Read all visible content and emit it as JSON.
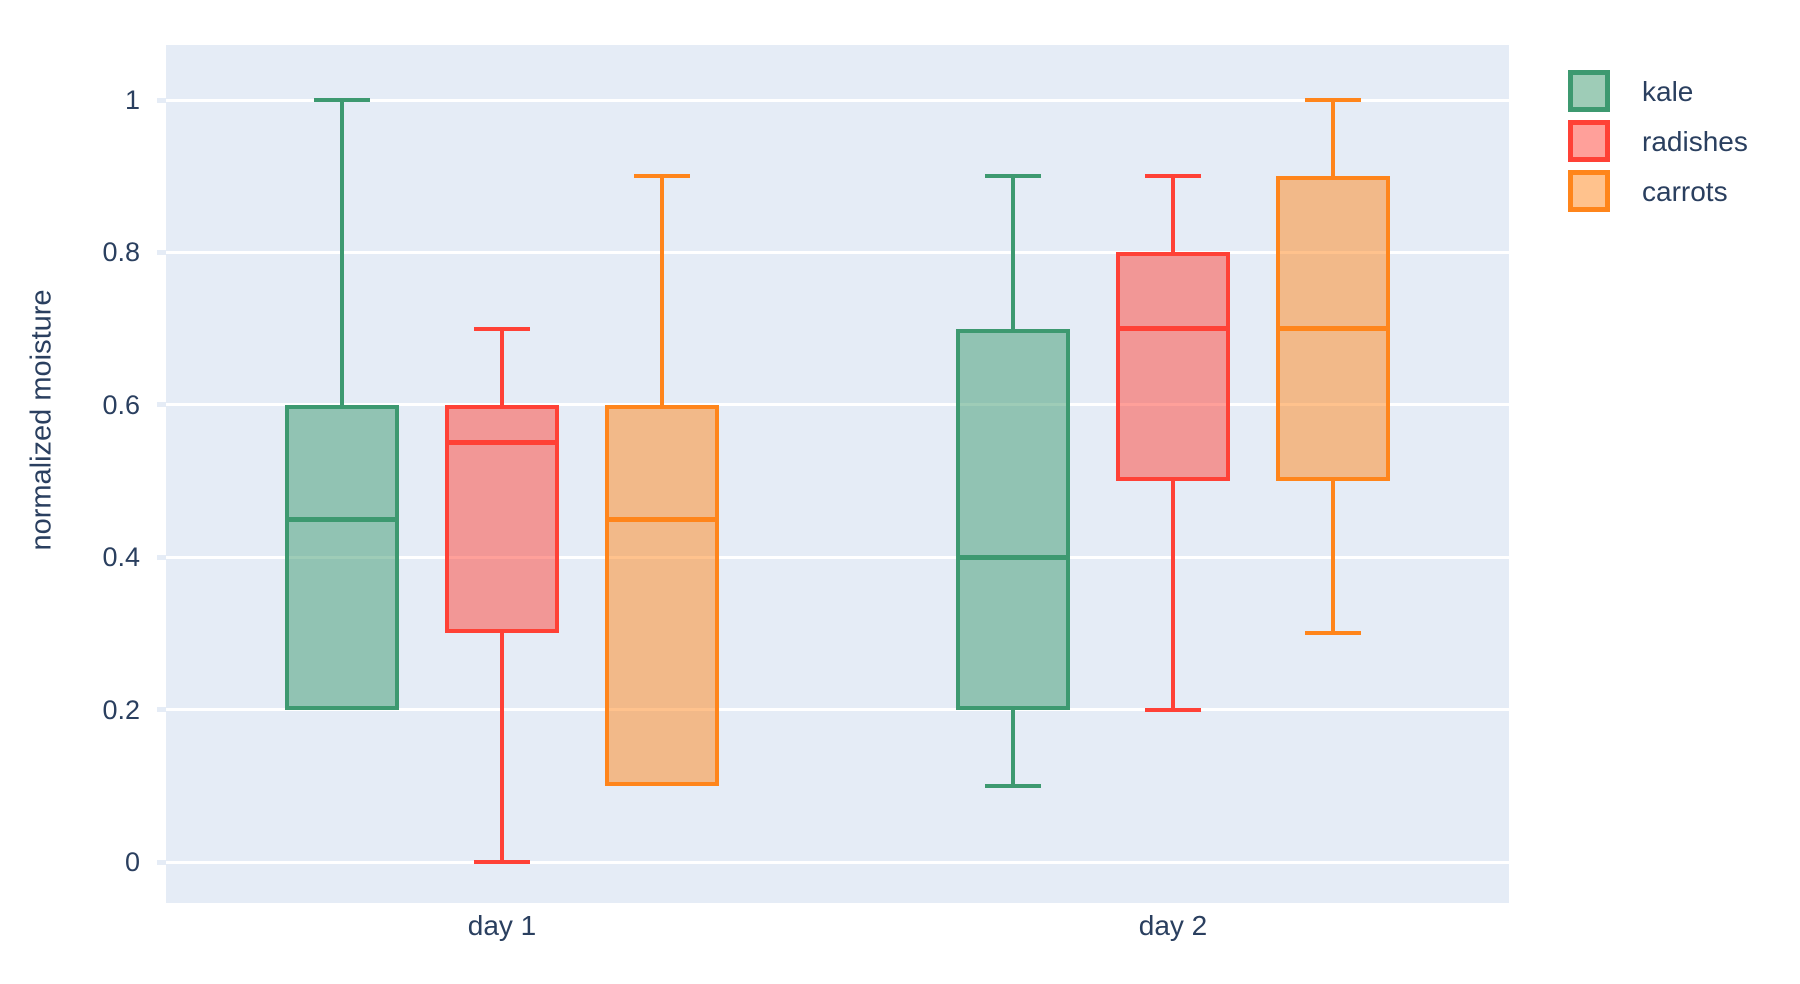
{
  "colors": {
    "plot_background": "#e5ecf6",
    "gridline": "#ffffff",
    "text": "#2a3f5f",
    "kale": "#3d9970",
    "radishes": "#ff4136",
    "carrots": "#ff851b"
  },
  "chart_data": {
    "type": "box",
    "title": "",
    "xlabel": "",
    "ylabel": "normalized moisture",
    "categories": [
      "day 1",
      "day 2"
    ],
    "yticks": [
      0,
      0.2,
      0.4,
      0.6,
      0.8,
      1
    ],
    "ylim": [
      -0.06,
      1.07
    ],
    "grid": true,
    "legend_position": "top-right-outside",
    "legend": [
      "kale",
      "radishes",
      "carrots"
    ],
    "series": [
      {
        "name": "kale",
        "color": "#3d9970",
        "boxes": [
          {
            "category": "day 1",
            "min": 0.2,
            "q1": 0.2,
            "median": 0.45,
            "q3": 0.6,
            "max": 1.0
          },
          {
            "category": "day 2",
            "min": 0.1,
            "q1": 0.2,
            "median": 0.4,
            "q3": 0.7,
            "max": 0.9
          }
        ]
      },
      {
        "name": "radishes",
        "color": "#ff4136",
        "boxes": [
          {
            "category": "day 1",
            "min": 0.0,
            "q1": 0.3,
            "median": 0.55,
            "q3": 0.6,
            "max": 0.7
          },
          {
            "category": "day 2",
            "min": 0.2,
            "q1": 0.5,
            "median": 0.7,
            "q3": 0.8,
            "max": 0.9
          }
        ]
      },
      {
        "name": "carrots",
        "color": "#ff851b",
        "boxes": [
          {
            "category": "day 1",
            "min": 0.1,
            "q1": 0.1,
            "median": 0.45,
            "q3": 0.6,
            "max": 0.9
          },
          {
            "category": "day 2",
            "min": 0.3,
            "q1": 0.5,
            "median": 0.7,
            "q3": 0.9,
            "max": 1.0
          }
        ]
      }
    ]
  }
}
